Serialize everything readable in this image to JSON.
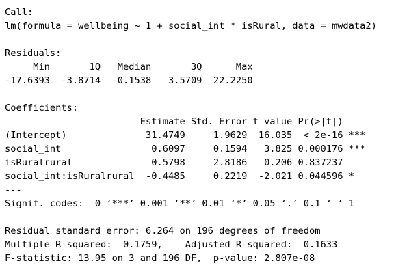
{
  "output": {
    "call_header": "Call:",
    "call": "lm(formula = wellbeing ~ 1 + social_int * isRural, data = mwdata2)",
    "residuals_header": "Residuals:",
    "residuals_labels": "     Min       1Q   Median       3Q      Max ",
    "residuals_values": "-17.6393  -3.8714  -0.1538   3.5709  22.2250 ",
    "coefficients_header": "Coefficients:",
    "coef_columns": "                        Estimate Std. Error t value Pr(>|t|)    ",
    "coef_rows": [
      "(Intercept)              31.4749     1.9629  16.035  < 2e-16 ***",
      "social_int                0.6097     0.1594   3.825 0.000176 ***",
      "isRuralrural              0.5798     2.8186   0.206 0.837237    ",
      "social_int:isRuralrural  -0.4485     0.2219  -2.021 0.044596 *  "
    ],
    "separator": "---",
    "signif_codes": "Signif. codes:  0 ‘***’ 0.001 ‘**’ 0.01 ‘*’ 0.05 ‘.’ 0.1 ‘ ’ 1",
    "residual_se": "Residual standard error: 6.264 on 196 degrees of freedom",
    "r_squared": "Multiple R-squared:  0.1759,\tAdjusted R-squared:  0.1633 ",
    "f_statistic": "F-statistic: 13.95 on 3 and 196 DF,  p-value: 2.807e-08"
  }
}
